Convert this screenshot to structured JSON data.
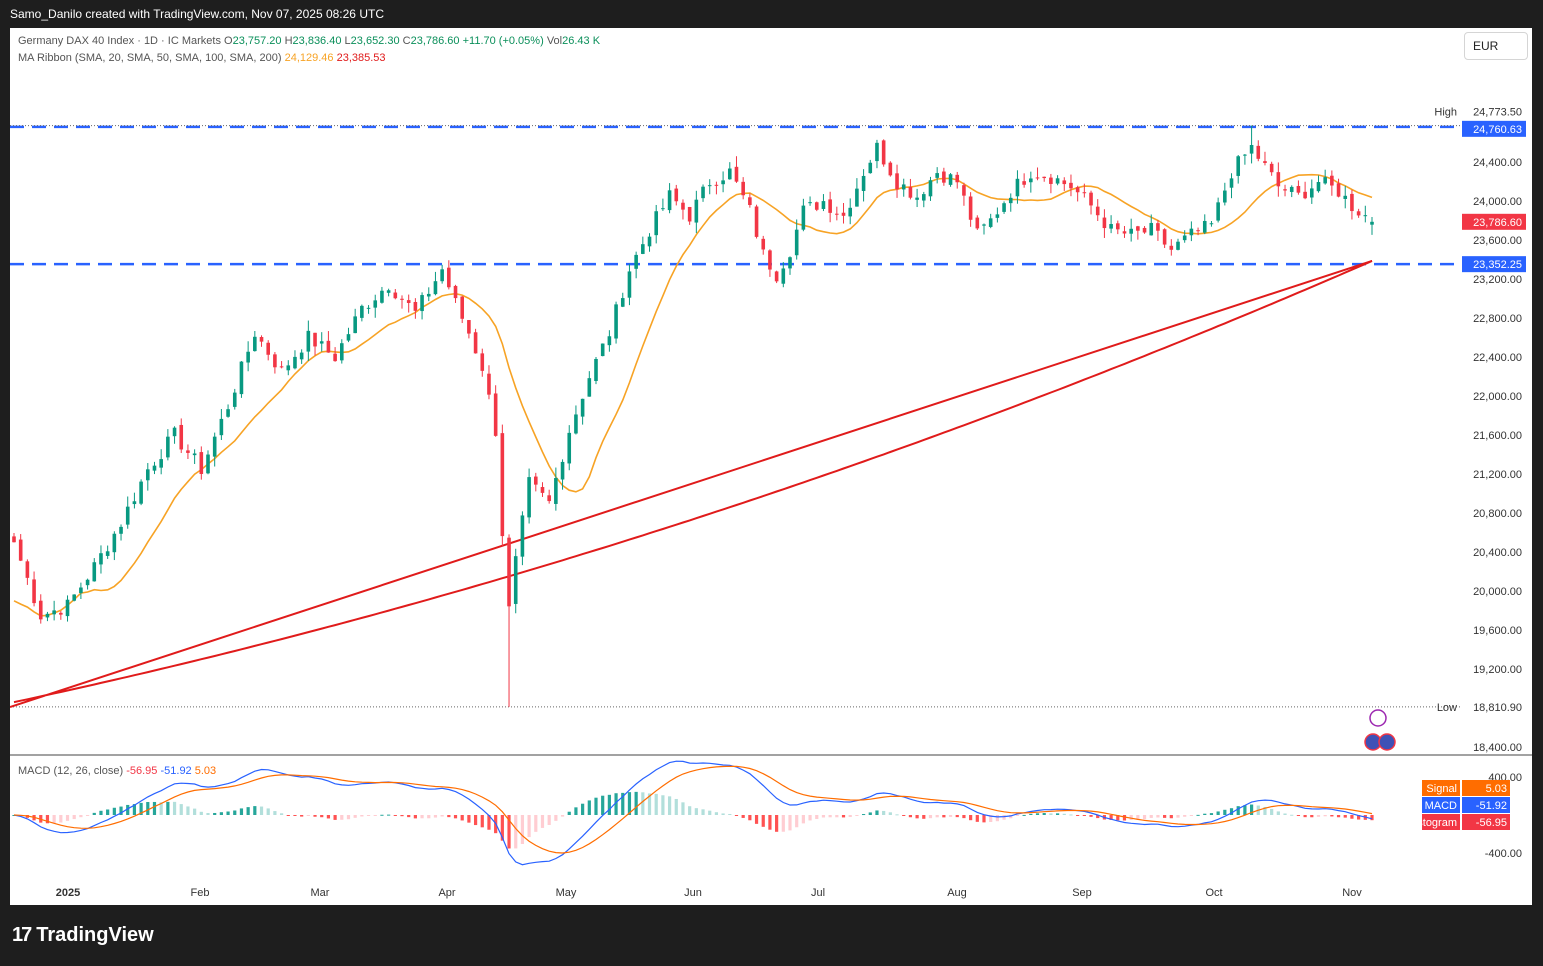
{
  "header": {
    "credit": "Samo_Danilo created with TradingView.com, Nov 07, 2025 08:26 UTC"
  },
  "legend": {
    "symbol": "Germany DAX 40 Index · 1D · IC Markets",
    "open_label": "O",
    "open": "23,757.20",
    "high_label": "H",
    "high": "23,836.40",
    "low_label": "L",
    "low": "23,652.30",
    "close_label": "C",
    "close": "23,786.60",
    "change": "+11.70 (+0.05%)",
    "vol_label": "Vol",
    "vol": "26.43 K",
    "ma_ribbon": "MA Ribbon (SMA, 20, SMA, 50, SMA, 100, SMA, 200)",
    "ma1": "24,129.46",
    "ma2": "23,385.53"
  },
  "currency": "EUR",
  "branding": {
    "logo_mark": "17",
    "logo_text": "TradingView"
  },
  "colors": {
    "up": "#089981",
    "down": "#f23645",
    "sma20": "#f7a325",
    "sma200": "#e01b1b",
    "level": "#2962ff",
    "macd": "#2962ff",
    "signal": "#ff6d00"
  },
  "chart_data": [
    {
      "type": "candlestick",
      "y_axis": {
        "ticks": [
          18400,
          18800,
          19200,
          19600,
          20000,
          20400,
          20800,
          21200,
          21600,
          22000,
          22400,
          22800,
          23200,
          23600,
          24000,
          24400
        ],
        "tick_labels": [
          "18,400.00",
          "18,800.00",
          "19,200.00",
          "19,600.00",
          "20,000.00",
          "20,400.00",
          "20,800.00",
          "21,200.00",
          "21,600.00",
          "22,000.00",
          "22,400.00",
          "22,800.00",
          "23,200.00",
          "23,600.00",
          "24,000.00",
          "24,400.00"
        ]
      },
      "x_axis": {
        "labels": [
          "2025",
          "Feb",
          "Mar",
          "Apr",
          "May",
          "Jun",
          "Jul",
          "Aug",
          "Sep",
          "Oct",
          "Nov"
        ]
      },
      "close_path": [
        [
          0,
          20500
        ],
        [
          4,
          19750
        ],
        [
          8,
          19850
        ],
        [
          12,
          20250
        ],
        [
          16,
          20700
        ],
        [
          20,
          21250
        ],
        [
          24,
          21600
        ],
        [
          28,
          21250
        ],
        [
          32,
          21900
        ],
        [
          36,
          22650
        ],
        [
          40,
          22250
        ],
        [
          44,
          22600
        ],
        [
          48,
          22400
        ],
        [
          52,
          22900
        ],
        [
          56,
          23150
        ],
        [
          60,
          22850
        ],
        [
          64,
          23300
        ],
        [
          66,
          22950
        ],
        [
          68,
          22650
        ],
        [
          70,
          22300
        ],
        [
          72,
          21650
        ],
        [
          73,
          20600
        ],
        [
          74,
          19800
        ],
        [
          75,
          20300
        ],
        [
          77,
          21100
        ],
        [
          80,
          20900
        ],
        [
          83,
          21650
        ],
        [
          86,
          22200
        ],
        [
          89,
          22650
        ],
        [
          92,
          23300
        ],
        [
          95,
          23700
        ],
        [
          98,
          24050
        ],
        [
          101,
          23850
        ],
        [
          104,
          24200
        ],
        [
          107,
          24300
        ],
        [
          110,
          23900
        ],
        [
          112,
          23450
        ],
        [
          114,
          23250
        ],
        [
          116,
          23500
        ],
        [
          118,
          23900
        ],
        [
          121,
          24000
        ],
        [
          124,
          23850
        ],
        [
          127,
          24300
        ],
        [
          129,
          24550
        ],
        [
          132,
          24200
        ],
        [
          135,
          24050
        ],
        [
          138,
          24300
        ],
        [
          141,
          24200
        ],
        [
          144,
          23650
        ],
        [
          146,
          23800
        ],
        [
          149,
          24100
        ],
        [
          152,
          24300
        ],
        [
          155,
          24250
        ],
        [
          158,
          24150
        ],
        [
          161,
          23950
        ],
        [
          164,
          23700
        ],
        [
          167,
          23650
        ],
        [
          170,
          23700
        ],
        [
          173,
          23500
        ],
        [
          176,
          23650
        ],
        [
          179,
          23750
        ],
        [
          182,
          24300
        ],
        [
          185,
          24550
        ],
        [
          187,
          24350
        ],
        [
          189,
          24150
        ],
        [
          192,
          24050
        ],
        [
          195,
          24200
        ],
        [
          198,
          24100
        ],
        [
          200,
          23950
        ],
        [
          202,
          23850
        ],
        [
          203,
          23786.6
        ]
      ],
      "high": {
        "label": "High",
        "value": "24,773.50"
      },
      "low": {
        "label": "Low",
        "value": "18,810.90"
      },
      "price_label": "23,786.60",
      "levels": [
        {
          "value": 24760.63,
          "label": "24,760.63"
        },
        {
          "value": 23352.25,
          "label": "23,352.25"
        }
      ],
      "sma20_end": "24,129.46",
      "sma200_end": "23,385.53"
    },
    {
      "type": "macd",
      "title": "MACD (12, 26, close)",
      "legend_values": [
        "-56.95",
        "-51.92",
        "5.03"
      ],
      "y_axis": {
        "ticks": [
          400,
          0,
          -400
        ],
        "tick_labels": [
          "400.00",
          "",
          "-400.00"
        ]
      },
      "tags": [
        {
          "label": "Signal",
          "value": "5.03"
        },
        {
          "label": "MACD",
          "value": "-51.92"
        },
        {
          "label": "Histogram",
          "value": "-56.95"
        }
      ]
    }
  ]
}
